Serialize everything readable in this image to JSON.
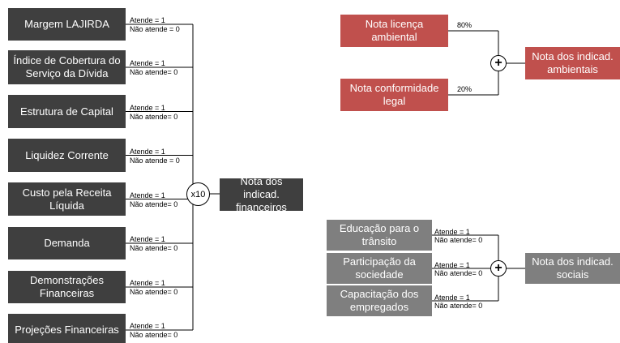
{
  "financial": {
    "inputs": [
      {
        "label": "Margem LAJIRDA",
        "yes": "Atende = 1",
        "no": "Não atende = 0"
      },
      {
        "label": "Índice de Cobertura do Serviço da Dívida",
        "yes": "Atende = 1",
        "no": "Não atende= 0"
      },
      {
        "label": "Estrutura de Capital",
        "yes": "Atende = 1",
        "no": "Não atende= 0"
      },
      {
        "label": "Liquidez Corrente",
        "yes": "Atende = 1",
        "no": "Não atende = 0"
      },
      {
        "label": "Custo pela Receita Líquida",
        "yes": "Atende = 1",
        "no": "Não atende= 0"
      },
      {
        "label": "Demanda",
        "yes": "Atende = 1",
        "no": "Não atende= 0"
      },
      {
        "label": "Demonstrações Financeiras",
        "yes": "Atende = 1",
        "no": "Não atende= 0"
      },
      {
        "label": "Projeções Financeiras",
        "yes": "Atende = 1",
        "no": "Não atende= 0"
      }
    ],
    "operator": "x10",
    "output": "Nota dos indicad. financeiros"
  },
  "environmental": {
    "inputs": [
      {
        "label": "Nota licença ambiental",
        "weight": "80%"
      },
      {
        "label": "Nota conformidade legal",
        "weight": "20%"
      }
    ],
    "operator": "+",
    "output": "Nota dos indicad. ambientais"
  },
  "social": {
    "inputs": [
      {
        "label": "Educação para o trânsito",
        "yes": "Atende = 1",
        "no": "Não atende= 0"
      },
      {
        "label": "Participação da sociedade",
        "yes": "Atende = 1",
        "no": "Não atende= 0"
      },
      {
        "label": "Capacitação dos empregados",
        "yes": "Atende = 1",
        "no": "Não atende= 0"
      }
    ],
    "operator": "+",
    "output": "Nota dos indicad. sociais"
  }
}
